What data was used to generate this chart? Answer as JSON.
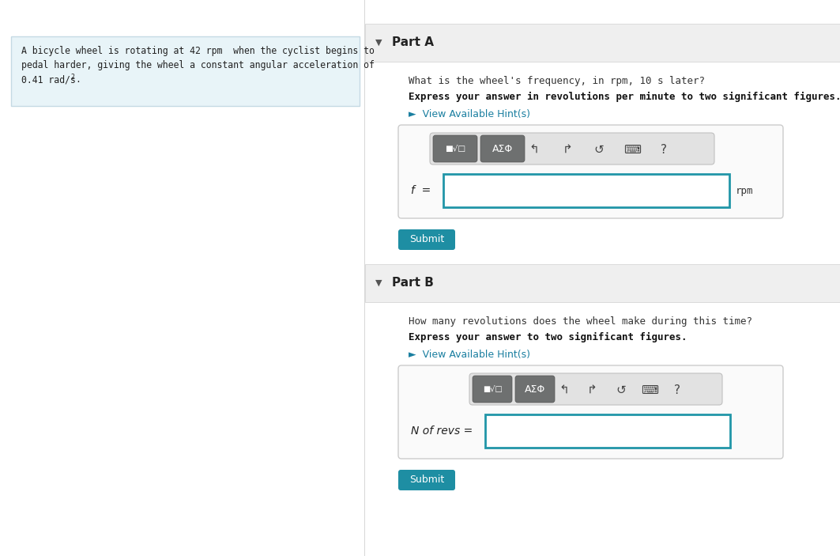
{
  "bg_color": "#ffffff",
  "left_panel_bg": "#e8f4f8",
  "left_panel_border": "#c5dae4",
  "right_bg": "#ffffff",
  "header_bg": "#efefef",
  "header_border": "#d0d0d0",
  "panel_border": "#cccccc",
  "input_bg": "#ffffff",
  "input_border": "#2196a8",
  "submit_bg": "#1e8ea3",
  "submit_fg": "#ffffff",
  "hint_color": "#1a7fa0",
  "toolbar_bg": "#e2e2e2",
  "toolbar_border": "#c0c0c0",
  "btn_bg": "#6e7070",
  "btn_fg": "#ffffff",
  "divider_color": "#d8d8d8",
  "text_dark": "#222222",
  "text_mid": "#444444",
  "arrow_color": "#555555",
  "left_text_line1": "A bicycle wheel is rotating at 42 rpm  when the cyclist begins to",
  "left_text_line2": "pedal harder, giving the wheel a constant angular acceleration of",
  "left_text_line3_a": "0.41 rad/s",
  "left_text_line3_b": "2",
  "left_text_line3_c": ".",
  "part_a_title": "Part A",
  "part_a_q": "What is the wheel's frequency, in rpm, 10 s later?",
  "part_a_instr": "Express your answer in revolutions per minute to two significant figures.",
  "part_a_hint": "►  View Available Hint(s)",
  "part_a_flabel": "f  =",
  "part_a_unit": "rpm",
  "part_b_title": "Part B",
  "part_b_q": "How many revolutions does the wheel make during this time?",
  "part_b_instr": "Express your answer to two significant figures.",
  "part_b_hint": "►  View Available Hint(s)",
  "part_b_nlabel": "N of revs =",
  "submit_label": "Submit",
  "arrow_sym": "▼",
  "icon_syms": [
    "↰",
    "↱",
    "↺",
    "⌨",
    "?"
  ]
}
